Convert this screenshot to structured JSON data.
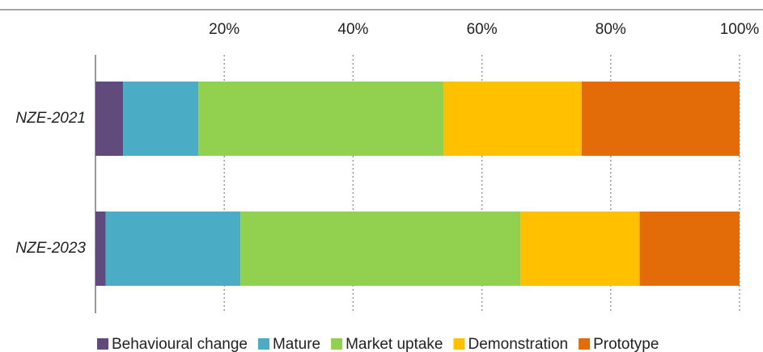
{
  "chart_data": {
    "type": "stacked-bar-horizontal",
    "categories": [
      "NZE-2021",
      "NZE-2023"
    ],
    "series": [
      {
        "name": "Behavioural change",
        "color": "#614b7d",
        "values": [
          4.3,
          1.6
        ]
      },
      {
        "name": "Mature",
        "color": "#4bacc6",
        "values": [
          11.7,
          20.9
        ]
      },
      {
        "name": "Market uptake",
        "color": "#92d050",
        "values": [
          38.1,
          43.5
        ]
      },
      {
        "name": "Demonstration",
        "color": "#ffc000",
        "values": [
          21.4,
          18.5
        ]
      },
      {
        "name": "Prototype",
        "color": "#e36c09",
        "values": [
          24.5,
          15.5
        ]
      }
    ],
    "xlim": [
      0,
      100
    ],
    "xticks": [
      {
        "value": 20,
        "label": "20%"
      },
      {
        "value": 40,
        "label": "40%"
      },
      {
        "value": 60,
        "label": "60%"
      },
      {
        "value": 80,
        "label": "80%"
      },
      {
        "value": 100,
        "label": "100%"
      }
    ],
    "grid": true,
    "legend": "bottom"
  }
}
